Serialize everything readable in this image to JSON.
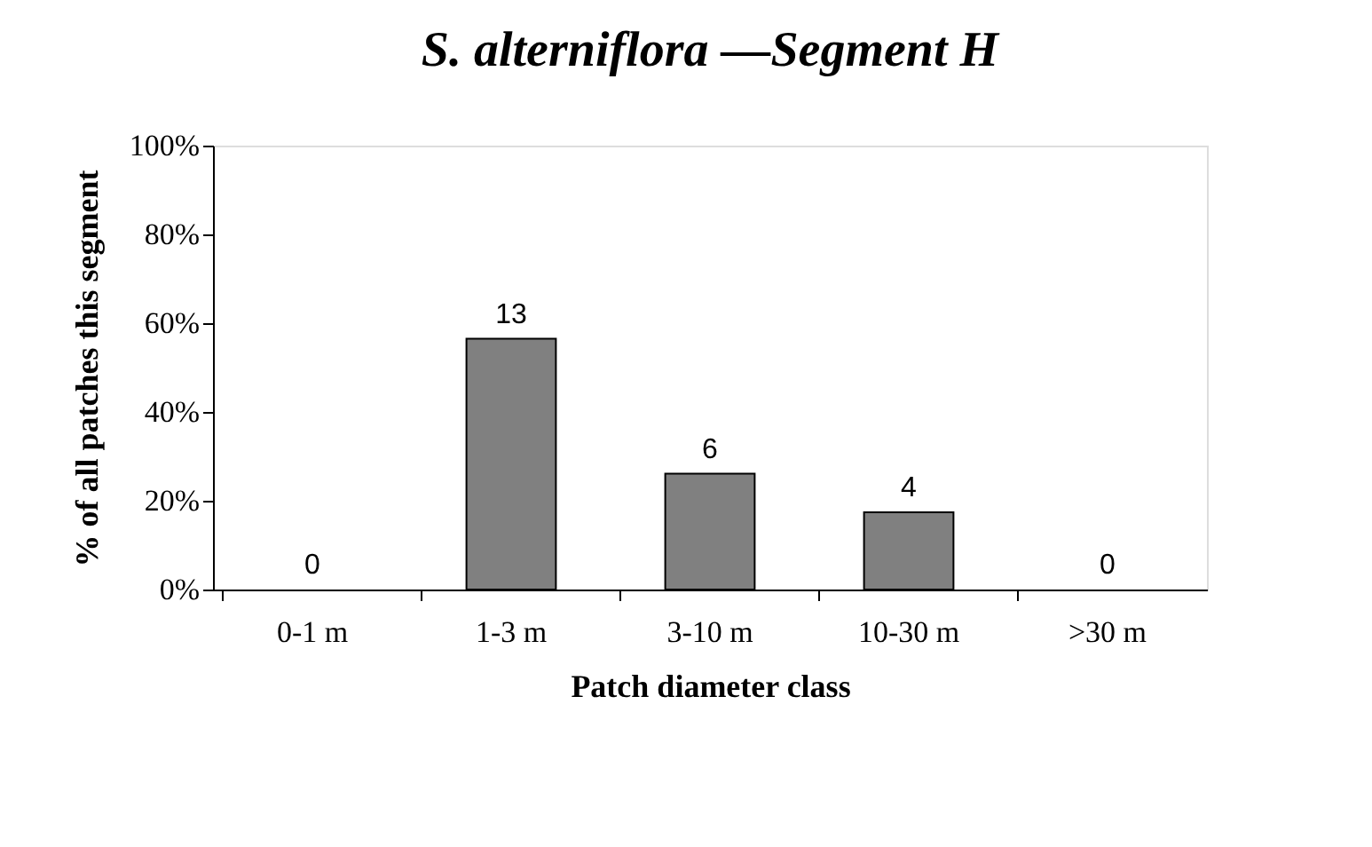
{
  "chart_data": {
    "type": "bar",
    "title": "S. alterniflora —Segment H",
    "xlabel": "Patch diameter class",
    "ylabel": "% of all patches this segment",
    "categories": [
      "0-1 m",
      "1-3 m",
      "3-10 m",
      "10-30 m",
      ">30 m"
    ],
    "values": [
      0,
      56.5,
      26.1,
      17.4,
      0
    ],
    "color": "#808080",
    "annotations": [
      {
        "text": "0",
        "x": "0-1 m",
        "y": 0
      },
      {
        "text": "13",
        "x": "1-3 m",
        "y": 56.5
      },
      {
        "text": "6",
        "x": "3-10 m",
        "y": 26.1
      },
      {
        "text": "4",
        "x": "10-30 m",
        "y": 17.4
      },
      {
        "text": "0",
        "x": ">30 m",
        "y": 0
      }
    ],
    "ylim": [
      0,
      100
    ],
    "yticks": [
      {
        "value": 0,
        "label": "0%"
      },
      {
        "value": 20,
        "label": "20%"
      },
      {
        "value": 40,
        "label": "40%"
      },
      {
        "value": 60,
        "label": "60%"
      },
      {
        "value": 80,
        "label": "80%"
      },
      {
        "value": 100,
        "label": "100%"
      }
    ],
    "grid": false
  }
}
